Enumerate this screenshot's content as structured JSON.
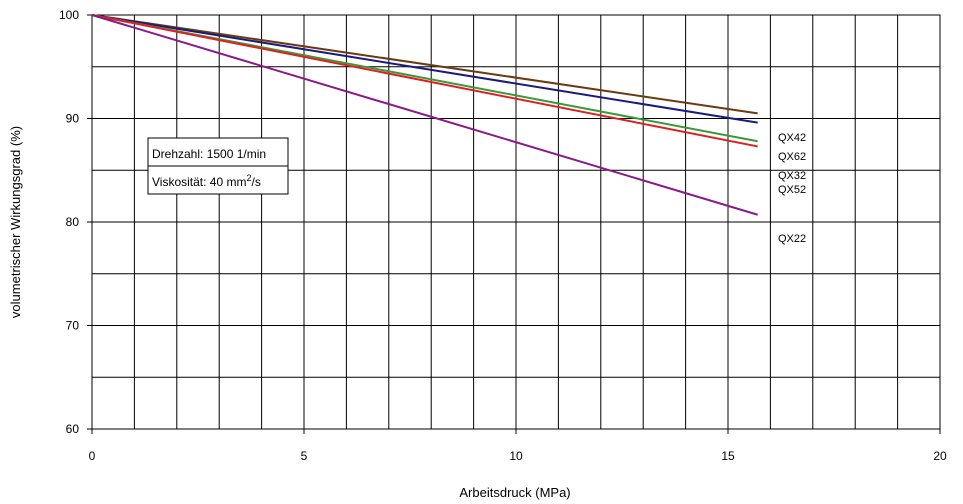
{
  "chart_data": {
    "type": "line",
    "xlabel": "Arbeitsdruck (MPa)",
    "ylabel": "volumetrischer Wirkungsgrad (%)",
    "xlim": [
      0,
      20
    ],
    "ylim": [
      60,
      100
    ],
    "x_ticks": [
      0,
      5,
      10,
      15,
      20
    ],
    "y_ticks": [
      60,
      70,
      80,
      90,
      100
    ],
    "grid": true,
    "series": [
      {
        "name": "QX42",
        "color": "#6b3a10",
        "x": [
          0,
          15.7
        ],
        "y": [
          100,
          90.5
        ]
      },
      {
        "name": "QX62",
        "color": "#1a1a80",
        "x": [
          0,
          15.7
        ],
        "y": [
          100,
          89.6
        ]
      },
      {
        "name": "QX32",
        "color": "#3a9a3a",
        "x": [
          0,
          15.7
        ],
        "y": [
          100,
          87.8
        ]
      },
      {
        "name": "QX52",
        "color": "#e02020",
        "x": [
          0,
          15.7
        ],
        "y": [
          100,
          87.3
        ]
      },
      {
        "name": "QX22",
        "color": "#8a1a8a",
        "x": [
          0,
          15.7
        ],
        "y": [
          100,
          80.7
        ]
      }
    ],
    "annotation": {
      "line1": "Drehzahl: 1500 1/min",
      "line2_prefix": "Viskosität: 40 mm",
      "line2_sup": "2",
      "line2_suffix": "/s"
    }
  }
}
